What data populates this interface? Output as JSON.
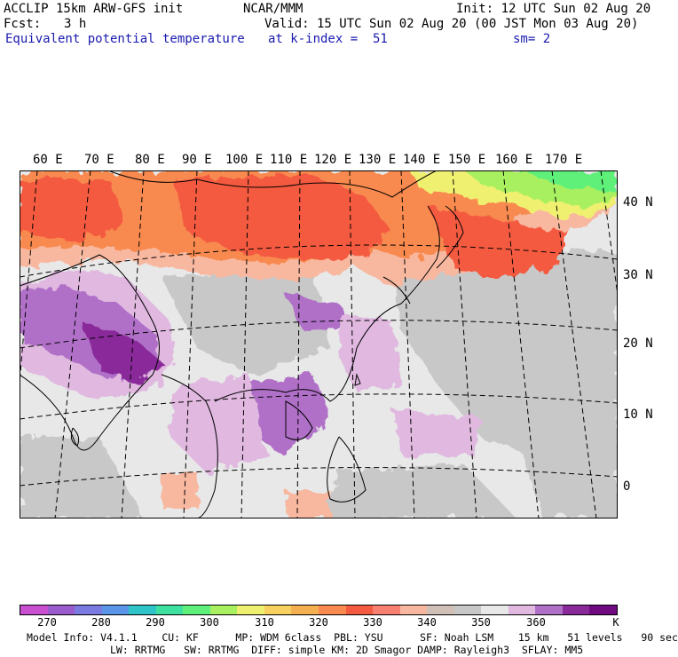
{
  "header": {
    "model": "ACCLIP 15km ARW-GFS init",
    "org": "NCAR/MMM",
    "init": "Init: 12 UTC Sun 02 Aug 20",
    "fcst_label": "Fcst:",
    "fcst_value": "3 h",
    "valid": "Valid: 15 UTC Sun 02 Aug 20 (00 JST Mon 03 Aug 20)",
    "field": "Equivalent potential temperature",
    "level": "at k-index =  51",
    "smooth": "sm= 2"
  },
  "map": {
    "lon_labels": [
      "60 E",
      "70 E",
      "80 E",
      "90 E",
      "100 E",
      "110 E",
      "120 E",
      "130 E",
      "140 E",
      "150 E",
      "160 E",
      "170 E"
    ],
    "lat_labels": [
      "40 N",
      "30 N",
      "20 N",
      "10 N",
      "0"
    ]
  },
  "colorbar": {
    "colors": [
      "#c84fd0",
      "#9a5ccc",
      "#7b7ae0",
      "#5a95e8",
      "#2ec4c8",
      "#3ee0a0",
      "#5ef07a",
      "#a8f060",
      "#f0f070",
      "#f8d060",
      "#f4b050",
      "#f88a50",
      "#f45a40",
      "#f88070",
      "#f8b8a0",
      "#d0c0b8",
      "#c8c8c8",
      "#e8e8e8",
      "#e0b8e0",
      "#b070c8",
      "#8a2a9a",
      "#700a80"
    ],
    "tick_labels": [
      "270",
      "280",
      "290",
      "300",
      "310",
      "320",
      "330",
      "340",
      "350",
      "360"
    ],
    "unit": "K"
  },
  "model_info": {
    "line1": "Model Info: V4.1.1    CU: KF      MP: WDM 6class  PBL: YSU      SF: Noah LSM    15 km   51 levels   90 sec",
    "line2": "LW: RRTMG   SW: RRTMG  DIFF: simple KM: 2D Smagor DAMP: Rayleigh3  SFLAY: MM5"
  }
}
